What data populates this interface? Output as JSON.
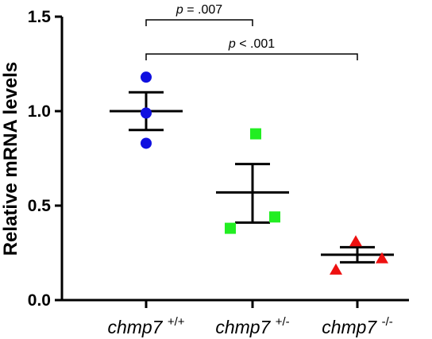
{
  "chart_data": {
    "type": "scatter",
    "ylabel": "Relative mRNA levels",
    "ylim": [
      0,
      1.5
    ],
    "yticks": [
      {
        "value": 0.0,
        "label": "0.0"
      },
      {
        "value": 0.5,
        "label": "0.5"
      },
      {
        "value": 1.0,
        "label": "1.0"
      },
      {
        "value": 1.5,
        "label": "1.5"
      }
    ],
    "groups": [
      {
        "gene": "chmp7",
        "genotype": "+/+",
        "color": "#1010e0",
        "marker": "circle",
        "points": [
          1.18,
          0.99,
          0.83
        ],
        "mean": 1.0,
        "sem_upper": 1.1,
        "sem_lower": 0.9
      },
      {
        "gene": "chmp7",
        "genotype": "+/-",
        "color": "#22ee22",
        "marker": "square",
        "points": [
          0.88,
          0.44,
          0.38
        ],
        "mean": 0.57,
        "sem_upper": 0.72,
        "sem_lower": 0.41
      },
      {
        "gene": "chmp7",
        "genotype": "-/-",
        "color": "#ee1010",
        "marker": "triangle",
        "points": [
          0.31,
          0.22,
          0.16
        ],
        "mean": 0.24,
        "sem_upper": 0.28,
        "sem_lower": 0.2
      }
    ],
    "significance": [
      {
        "from": 0,
        "to": 1,
        "symbol": "p",
        "text": "= .007"
      },
      {
        "from": 0,
        "to": 2,
        "symbol": "p",
        "text": "< .001"
      }
    ]
  }
}
